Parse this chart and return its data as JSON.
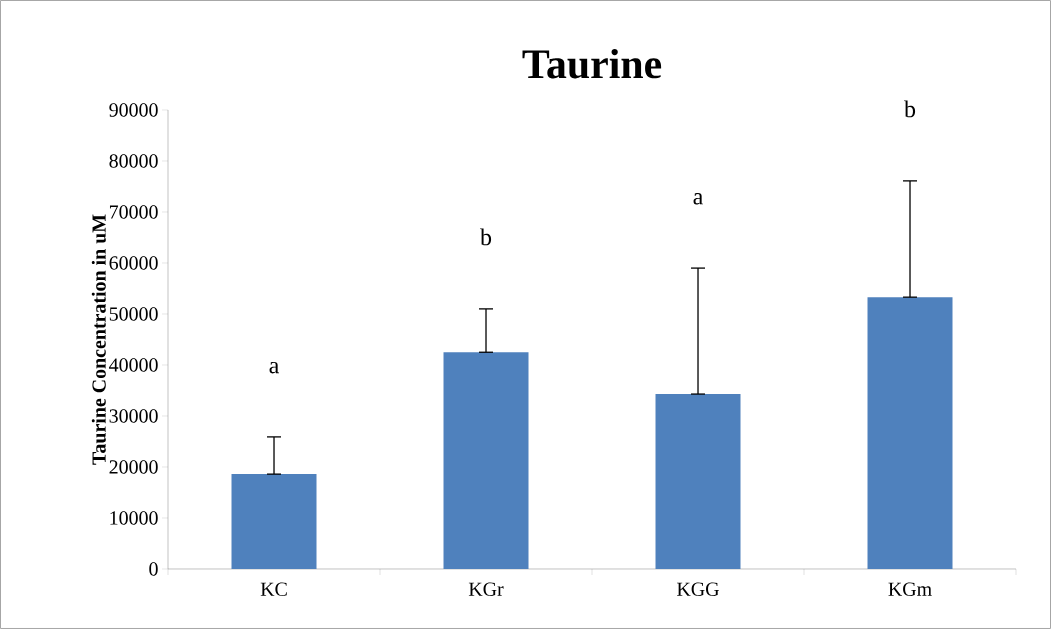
{
  "chart_data": {
    "type": "bar",
    "title": "Taurine",
    "ylabel": "Taurine Concentration in uM",
    "categories": [
      "KC",
      "KGr",
      "KGG",
      "KGm"
    ],
    "values": [
      18600,
      42500,
      34300,
      53300
    ],
    "errors": [
      [
        18600,
        25900
      ],
      [
        42500,
        51000
      ],
      [
        34300,
        59000
      ],
      [
        53300,
        76100
      ]
    ],
    "color": "#4f81bd",
    "annotations": [
      "a",
      "b",
      "a",
      "b"
    ],
    "ylim": [
      0,
      90000
    ],
    "yticks": [
      0,
      10000,
      20000,
      30000,
      40000,
      50000,
      60000,
      70000,
      80000,
      90000
    ]
  }
}
